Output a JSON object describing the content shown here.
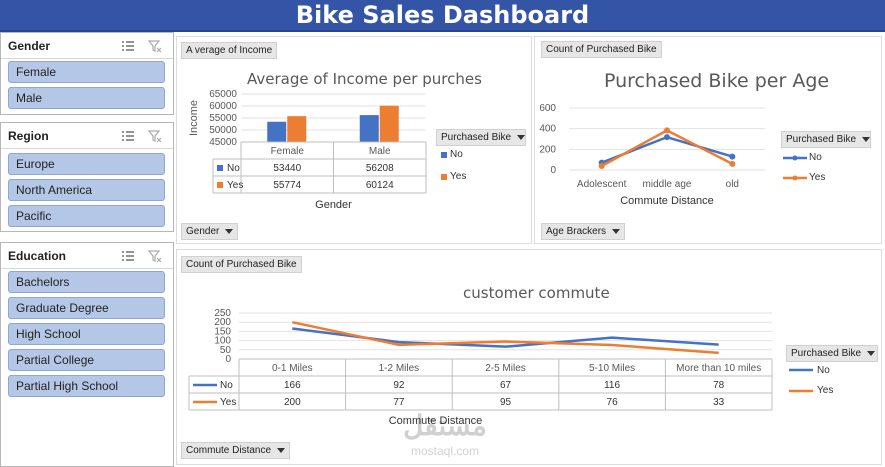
{
  "dashboard": {
    "title": "Bike Sales Dashboard"
  },
  "slicers": {
    "gender": {
      "title": "Gender",
      "items": [
        "Female",
        "Male"
      ]
    },
    "region": {
      "title": "Region",
      "items": [
        "Europe",
        "North America",
        "Pacific"
      ]
    },
    "education": {
      "title": "Education",
      "items": [
        "Bachelors",
        "Graduate Degree",
        "High School",
        "Partial College",
        "Partial High School"
      ]
    }
  },
  "panels": {
    "income": {
      "value_button": "A verage of Income",
      "axis_button": "Gender",
      "legend_button": "Purchased Bike"
    },
    "age": {
      "value_button": "Count of Purchased Bike",
      "axis_button": "Age Brackers",
      "legend_button": "Purchased Bike"
    },
    "commute": {
      "value_button": "Count of Purchased Bike",
      "axis_button": "Commute Distance",
      "legend_button": "Purchased Bike"
    }
  },
  "colors": {
    "no": "#4472c4",
    "yes": "#ed7d31",
    "header": "#3454a5",
    "slicer_item": "#b4c7e7"
  },
  "watermark": {
    "text_ar": "مستقل",
    "text_en": "mostaql.com"
  },
  "chart_data": [
    {
      "type": "bar",
      "title": "Average of Income per purches",
      "xlabel": "Gender",
      "ylabel": "Income",
      "categories": [
        "Female",
        "Male"
      ],
      "series": [
        {
          "name": "No",
          "values": [
            53440,
            56208
          ]
        },
        {
          "name": "Yes",
          "values": [
            55774,
            60124
          ]
        }
      ],
      "ylim": [
        45000,
        65000
      ],
      "yticks": [
        45000,
        50000,
        55000,
        60000,
        65000
      ],
      "legend": "right",
      "data_table": true
    },
    {
      "type": "line",
      "title": "Purchased Bike per Age",
      "xlabel": "Commute Distance",
      "categories": [
        "Adolescent",
        "middle age",
        "old"
      ],
      "series": [
        {
          "name": "No",
          "values": [
            71,
            318,
            130
          ]
        },
        {
          "name": "Yes",
          "values": [
            39,
            383,
            59
          ]
        }
      ],
      "ylim": [
        0,
        600
      ],
      "yticks": [
        0,
        200,
        400,
        600
      ],
      "legend": "right",
      "markers": true
    },
    {
      "type": "line",
      "title": "customer commute",
      "xlabel": "Commute Distance",
      "categories": [
        "0-1 Miles",
        "1-2 Miles",
        "2-5 Miles",
        "5-10 Miles",
        "More than 10 miles"
      ],
      "series": [
        {
          "name": "No",
          "values": [
            166,
            92,
            67,
            116,
            78
          ]
        },
        {
          "name": "Yes",
          "values": [
            200,
            77,
            95,
            76,
            33
          ]
        }
      ],
      "ylim": [
        0,
        250
      ],
      "yticks": [
        0,
        50,
        100,
        150,
        200,
        250
      ],
      "legend": "right",
      "data_table": true
    }
  ]
}
